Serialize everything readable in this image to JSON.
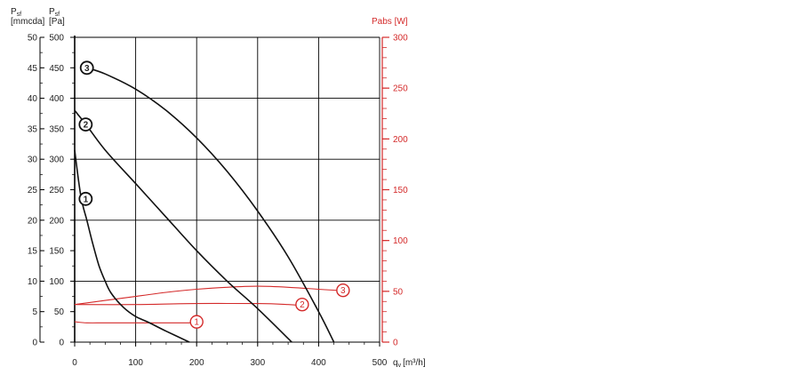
{
  "chart_data": {
    "type": "line",
    "axes": {
      "left_outer": {
        "label_top": "P",
        "label_sub": "sf",
        "label_unit": "[mmcda]",
        "range": [
          0,
          50
        ],
        "ticks": [
          0,
          5,
          10,
          15,
          20,
          25,
          30,
          35,
          40,
          45,
          50
        ]
      },
      "left_inner": {
        "label_top": "P",
        "label_sub": "sf",
        "label_unit": "[Pa]",
        "range": [
          0,
          500
        ],
        "ticks": [
          0,
          50,
          100,
          150,
          200,
          250,
          300,
          350,
          400,
          450,
          500
        ]
      },
      "right": {
        "label": "Pabs [W]",
        "range": [
          0,
          300
        ],
        "ticks": [
          0,
          50,
          100,
          150,
          200,
          250,
          300
        ]
      },
      "x": {
        "label_main": "q",
        "label_sub": "v",
        "label_unit": "[m³/h]",
        "range": [
          0,
          500
        ],
        "ticks": [
          0,
          100,
          200,
          300,
          400,
          500
        ]
      }
    },
    "pressure_series": [
      {
        "name": "1",
        "x": [
          0,
          10,
          20,
          30,
          40,
          50,
          60,
          80,
          100,
          120,
          150,
          188
        ],
        "y": [
          315,
          240,
          200,
          160,
          125,
          100,
          80,
          57,
          42,
          33,
          18,
          0
        ],
        "marker_x": 18,
        "marker_y": 235
      },
      {
        "name": "2",
        "x": [
          0,
          20,
          50,
          100,
          150,
          200,
          250,
          300,
          356
        ],
        "y": [
          380,
          355,
          315,
          260,
          205,
          150,
          100,
          55,
          0
        ],
        "marker_x": 18,
        "marker_y": 357
      },
      {
        "name": "3",
        "x": [
          20,
          50,
          100,
          150,
          200,
          250,
          300,
          350,
          400,
          425
        ],
        "y": [
          450,
          440,
          415,
          380,
          335,
          280,
          215,
          140,
          50,
          0
        ],
        "marker_x": 20,
        "marker_y": 450
      }
    ],
    "power_series": [
      {
        "name": "1",
        "x": [
          0,
          20,
          50,
          100,
          150,
          195
        ],
        "y": [
          20,
          19,
          19,
          19,
          19,
          19
        ],
        "marker_x": 200,
        "marker_y": 20
      },
      {
        "name": "2",
        "x": [
          0,
          100,
          200,
          300,
          350,
          370
        ],
        "y": [
          37,
          37,
          38,
          38,
          37,
          36
        ],
        "marker_x": 373,
        "marker_y": 37
      },
      {
        "name": "3",
        "x": [
          0,
          50,
          100,
          150,
          200,
          250,
          300,
          350,
          400,
          430
        ],
        "y": [
          37,
          41,
          45,
          49,
          52,
          54,
          55,
          54,
          52,
          51
        ],
        "marker_x": 440,
        "marker_y": 51
      }
    ],
    "colors": {
      "pressure": "#111111",
      "power": "#d42a2a",
      "grid": "#000000"
    }
  }
}
